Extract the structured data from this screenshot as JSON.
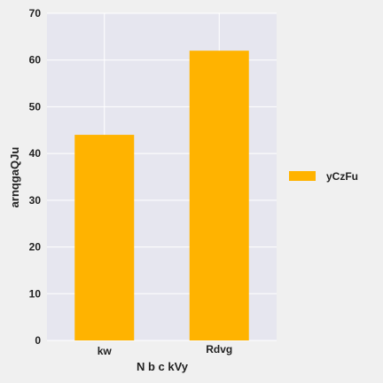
{
  "chart_data": {
    "type": "bar",
    "categories": [
      "kw",
      "Rdvg"
    ],
    "series": [
      {
        "name": "yCzFu",
        "values": [
          44,
          62
        ],
        "color": "#ffb300"
      }
    ],
    "title": "",
    "xlabel": "N b c  kVy",
    "ylabel": "arnqgaQJu",
    "ylim": [
      0,
      70
    ],
    "yticks": [
      0,
      10,
      20,
      30,
      40,
      50,
      60,
      70
    ],
    "grid": true,
    "legend_position": "right",
    "colors": {
      "plot_background": "#e6e6ef",
      "page_background": "#f0f0f0",
      "grid": "#ffffff"
    }
  }
}
